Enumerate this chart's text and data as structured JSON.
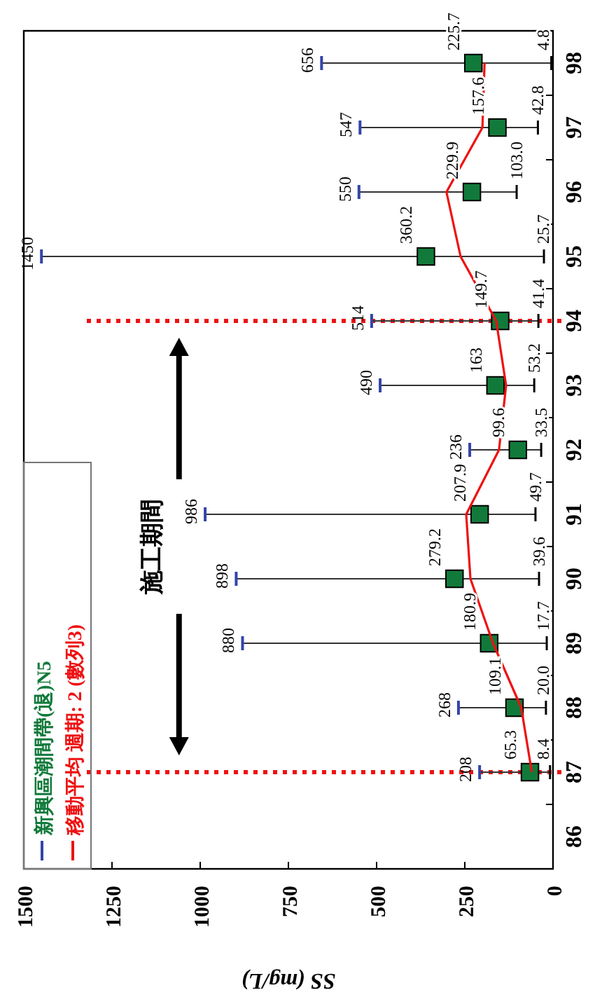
{
  "chart_data": {
    "type": "scatter",
    "orientation": "horizontal",
    "xlabel": "SS (mg/L)",
    "categories": [
      "98",
      "97",
      "96",
      "95",
      "94",
      "93",
      "92",
      "91",
      "90",
      "89",
      "88",
      "87",
      "86"
    ],
    "xlim": [
      1500,
      0
    ],
    "xticks": [
      1500,
      1250,
      1000,
      750,
      500,
      250,
      0
    ],
    "legend": "bottom left",
    "series": [
      {
        "name": "新興區潮間帶(退)N5",
        "color": "#117a3a",
        "marker": "square",
        "values": [
          225.7,
          157.6,
          229.9,
          360.2,
          149.7,
          163,
          99.6,
          207.9,
          279.2,
          180.9,
          109.1,
          65.3,
          null
        ],
        "value_labels": [
          "225.7",
          "157.6",
          "229.9",
          "360.2",
          "149.7",
          "163",
          "99.6",
          "207.9",
          "279.2",
          "180.9",
          "109.1",
          "65.3",
          null
        ],
        "errors": [
          [
            4.8,
            656
          ],
          [
            42.8,
            547
          ],
          [
            103,
            550
          ],
          [
            25.7,
            1450
          ],
          [
            41.4,
            514
          ],
          [
            53.2,
            490
          ],
          [
            33.5,
            236
          ],
          [
            49.7,
            986
          ],
          [
            39.6,
            898
          ],
          [
            17.7,
            880
          ],
          [
            20,
            268
          ],
          [
            8.4,
            208
          ],
          null
        ]
      },
      {
        "name": "移動平均 週期: 2 (數列3)",
        "type": "line",
        "color": "#ee1111",
        "values": [
          194,
          200,
          302,
          262,
          161,
          133,
          153,
          246,
          234,
          170,
          90,
          60,
          null
        ]
      }
    ],
    "ref_lines": [
      {
        "axis": "y",
        "value": "87",
        "color": "#ee1111",
        "line_style": "dotted"
      },
      {
        "axis": "y",
        "value": "94",
        "color": "#ee1111",
        "line_style": "dotted"
      }
    ],
    "annotations": [
      "施工期間",
      {
        "text": "208",
        "y": "87",
        "x": 208
      },
      {
        "text": "8.4",
        "y": "87",
        "x": 8.4
      },
      {
        "text": "268",
        "y": "88",
        "x": 268
      },
      {
        "text": "20.0",
        "y": "88",
        "x": 20
      },
      {
        "text": "880",
        "y": "89",
        "x": 880
      },
      {
        "text": "17.7",
        "y": "89",
        "x": 17.7
      },
      {
        "text": "898",
        "y": "90",
        "x": 898
      },
      {
        "text": "39.6",
        "y": "90",
        "x": 39.6
      },
      {
        "text": "986",
        "y": "91",
        "x": 986
      },
      {
        "text": "49.7",
        "y": "91",
        "x": 49.7
      },
      {
        "text": "236",
        "y": "92",
        "x": 236
      },
      {
        "text": "33.5",
        "y": "92",
        "x": 33.5
      },
      {
        "text": "490",
        "y": "93",
        "x": 490
      },
      {
        "text": "53.2",
        "y": "93",
        "x": 53.2
      },
      {
        "text": "514",
        "y": "94",
        "x": 514
      },
      {
        "text": "41.4",
        "y": "94",
        "x": 41.4
      },
      {
        "text": "1450",
        "y": "95",
        "x": 1450
      },
      {
        "text": "25.7",
        "y": "95",
        "x": 25.7
      },
      {
        "text": "550",
        "y": "96",
        "x": 550
      },
      {
        "text": "103.0",
        "y": "96",
        "x": 103
      },
      {
        "text": "547",
        "y": "97",
        "x": 547
      },
      {
        "text": "42.8",
        "y": "97",
        "x": 42.8
      },
      {
        "text": "656",
        "y": "98",
        "x": 656
      },
      {
        "text": "4.8",
        "y": "98",
        "x": 4.8
      }
    ]
  }
}
